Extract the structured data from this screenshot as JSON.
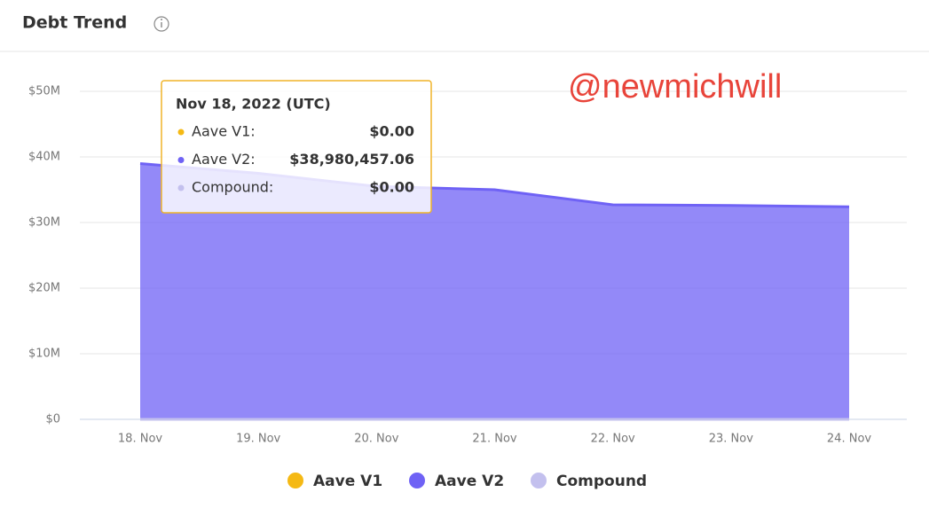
{
  "header": {
    "title": "Debt Trend"
  },
  "watermark": "@newmichwill",
  "chart_data": {
    "type": "area",
    "categories": [
      "18. Nov",
      "19. Nov",
      "20. Nov",
      "21. Nov",
      "22. Nov",
      "23. Nov",
      "24. Nov"
    ],
    "series": [
      {
        "name": "Aave V1",
        "color": "#f5b914",
        "values": [
          0,
          0,
          0,
          0,
          0,
          0,
          0
        ]
      },
      {
        "name": "Aave V2",
        "color": "#6f62f5",
        "values": [
          38980457.06,
          37500000,
          35500000,
          35000000,
          32700000,
          32600000,
          32400000
        ]
      },
      {
        "name": "Compound",
        "color": "#c3c0ee",
        "values": [
          0,
          0,
          0,
          0,
          0,
          0,
          0
        ]
      }
    ],
    "ylim": [
      0,
      50000000
    ],
    "yticks": [
      {
        "value": 0,
        "label": "$0"
      },
      {
        "value": 10000000,
        "label": "$10M"
      },
      {
        "value": 20000000,
        "label": "$20M"
      },
      {
        "value": 30000000,
        "label": "$30M"
      },
      {
        "value": 40000000,
        "label": "$40M"
      },
      {
        "value": 50000000,
        "label": "$50M"
      }
    ],
    "grid": true,
    "legend": "bottom",
    "tooltip": {
      "title": "Nov 18, 2022 (UTC)",
      "labels": [
        "Aave V1:",
        "Aave V2:",
        "Compound:"
      ],
      "values": [
        0,
        38980457.06,
        0
      ],
      "value_labels": [
        "$0.00",
        "$38,980,457.06",
        "$0.00"
      ]
    }
  }
}
